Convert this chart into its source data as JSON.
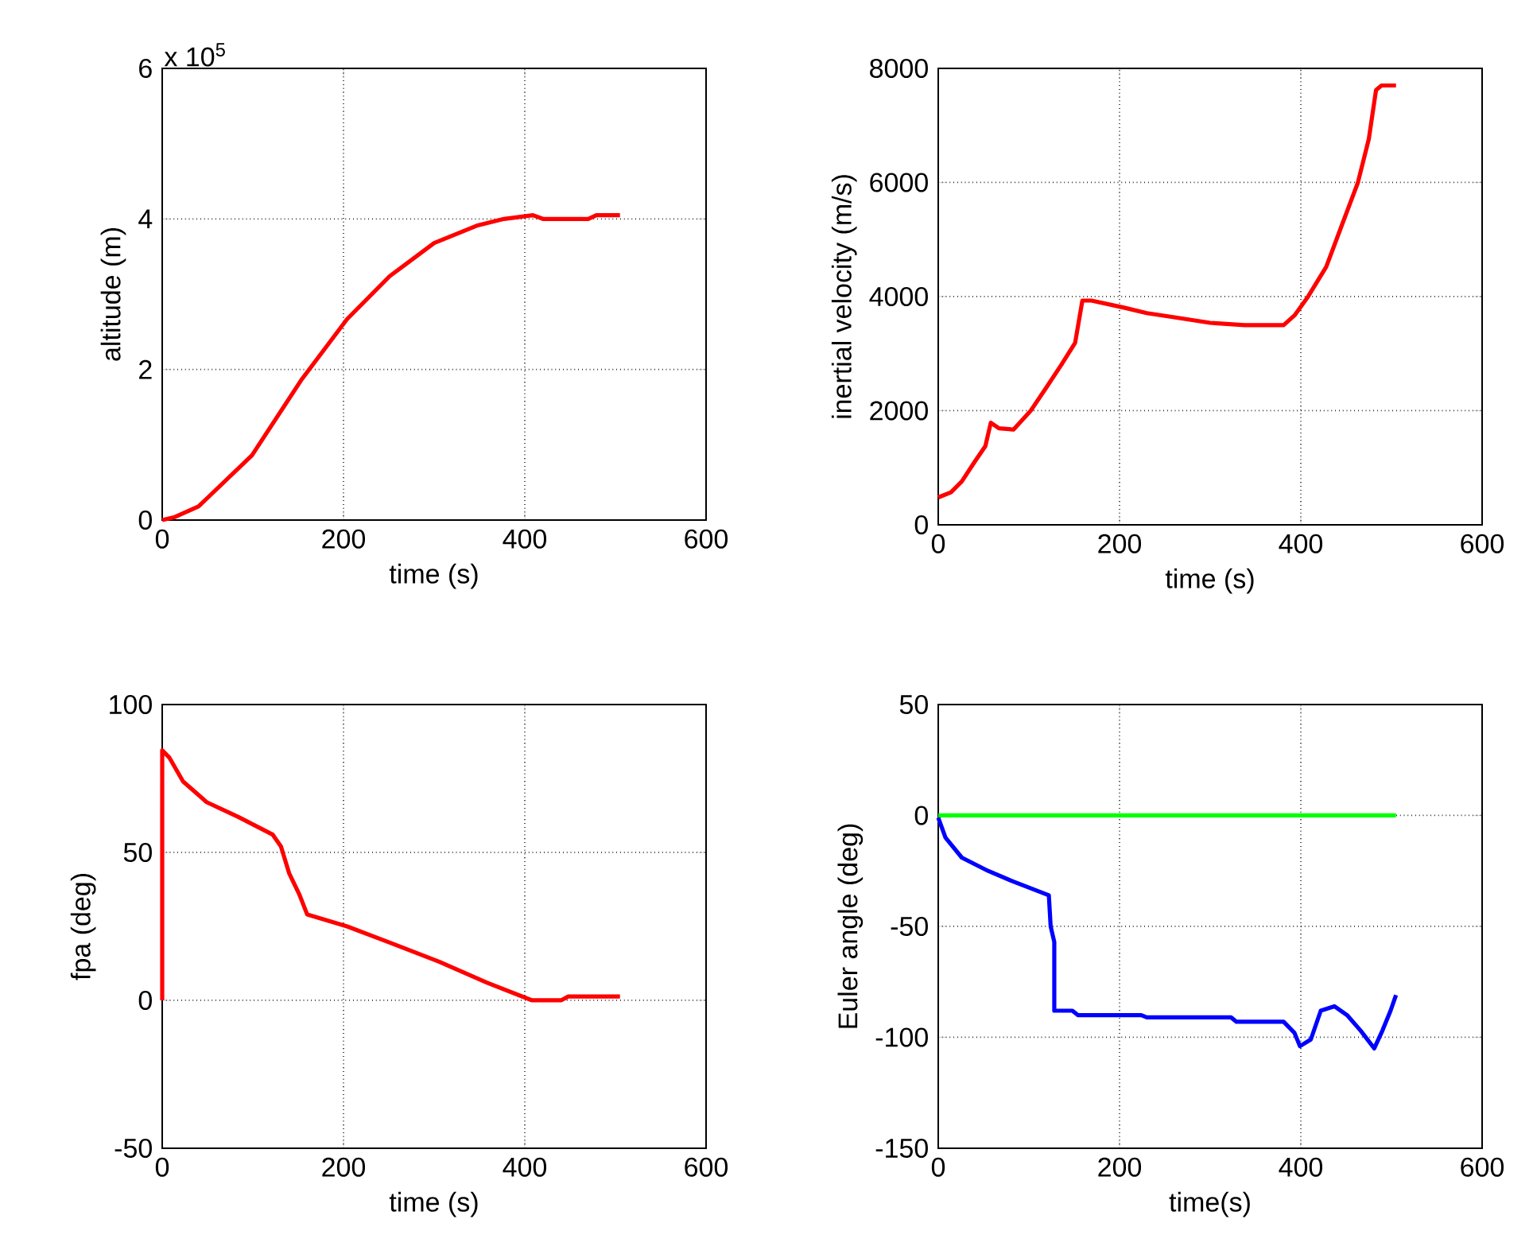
{
  "chart_data": [
    {
      "type": "line",
      "xlabel": "time (s)",
      "ylabel": "altitude (m)",
      "annotations": [
        "x 10$^{5}$"
      ],
      "xlim": [
        0,
        600
      ],
      "xticks": [
        0,
        200,
        400,
        600
      ],
      "ylim": [
        0,
        6
      ],
      "yticks": [
        0,
        2,
        4,
        6
      ],
      "grid": true,
      "series": [
        {
          "color": "#ff0000",
          "x": [
            0,
            14,
            40,
            99,
            154,
            204,
            251,
            300,
            347,
            377,
            409,
            420,
            470,
            479,
            505
          ],
          "values": [
            0,
            0.04,
            0.18,
            0.86,
            1.87,
            2.67,
            3.24,
            3.68,
            3.91,
            4.0,
            4.05,
            4.0,
            4.0,
            4.05,
            4.05
          ]
        }
      ]
    },
    {
      "type": "line",
      "xlabel": "time (s)",
      "ylabel": "inertial velocity (m/s)",
      "xlim": [
        0,
        600
      ],
      "xticks": [
        0,
        200,
        400,
        600
      ],
      "ylim": [
        0,
        8000
      ],
      "yticks": [
        0,
        2000,
        4000,
        6000,
        8000
      ],
      "grid": true,
      "series": [
        {
          "color": "#ff0000",
          "x": [
            0,
            14,
            26,
            40,
            52,
            58,
            67,
            83,
            102,
            119,
            136,
            151,
            159,
            169,
            204,
            230,
            259,
            300,
            338,
            381,
            393,
            408,
            428,
            445,
            463,
            475,
            483,
            489,
            505
          ],
          "values": [
            480,
            570,
            760,
            1100,
            1380,
            1790,
            1690,
            1670,
            2000,
            2400,
            2810,
            3190,
            3930,
            3930,
            3810,
            3710,
            3640,
            3540,
            3500,
            3500,
            3670,
            4000,
            4520,
            5240,
            6000,
            6760,
            7620,
            7700,
            7700
          ]
        }
      ]
    },
    {
      "type": "line",
      "xlabel": "time (s)",
      "ylabel": "fpa (deg)",
      "xlim": [
        0,
        600
      ],
      "xticks": [
        0,
        200,
        400,
        600
      ],
      "ylim": [
        -50,
        100
      ],
      "yticks": [
        -50,
        0,
        50,
        100
      ],
      "grid": true,
      "series": [
        {
          "color": "#ff0000",
          "x": [
            0,
            0,
            8,
            23,
            49,
            84,
            122,
            131,
            140,
            151,
            160,
            204,
            247,
            306,
            358,
            408,
            440,
            448,
            505
          ],
          "values": [
            0,
            84.5,
            82,
            74,
            67,
            62,
            56,
            52,
            43,
            36,
            29,
            25,
            20,
            13,
            6,
            0,
            0,
            1.3,
            1.3
          ]
        }
      ]
    },
    {
      "type": "line",
      "xlabel": "time(s)",
      "ylabel": "Euler angle (deg)",
      "xlim": [
        0,
        600
      ],
      "xticks": [
        0,
        200,
        400,
        600
      ],
      "ylim": [
        -150,
        50
      ],
      "yticks": [
        -150,
        -100,
        -50,
        0,
        50
      ],
      "grid": true,
      "series": [
        {
          "color": "#00ff00",
          "x": [
            0,
            505
          ],
          "values": [
            0,
            0
          ]
        },
        {
          "color": "#0000ff",
          "x": [
            0,
            8,
            26,
            55,
            84,
            122,
            124,
            128,
            128,
            148,
            154,
            224,
            230,
            323,
            329,
            381,
            393,
            399,
            411,
            422,
            437,
            451,
            466,
            481,
            490,
            499,
            505
          ],
          "values": [
            -1,
            -10,
            -19,
            -25,
            -30,
            -36,
            -50,
            -57,
            -88,
            -88,
            -90,
            -90,
            -91,
            -91,
            -93,
            -93,
            -98,
            -104,
            -101,
            -88,
            -86,
            -90,
            -97,
            -105,
            -97,
            -88,
            -81
          ]
        }
      ]
    }
  ]
}
